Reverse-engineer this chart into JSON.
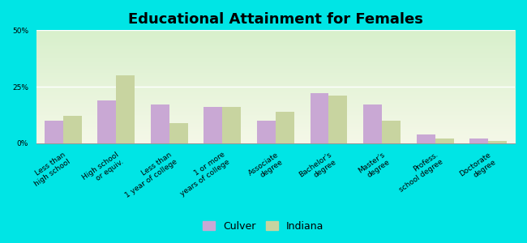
{
  "title": "Educational Attainment for Females",
  "categories": [
    "Less than\nhigh school",
    "High school\nor equiv.",
    "Less than\n1 year of college",
    "1 or more\nyears of college",
    "Associate\ndegree",
    "Bachelor's\ndegree",
    "Master's\ndegree",
    "Profess.\nschool degree",
    "Doctorate\ndegree"
  ],
  "culver_values": [
    10,
    19,
    17,
    16,
    10,
    22,
    17,
    4,
    2
  ],
  "indiana_values": [
    12,
    30,
    9,
    16,
    14,
    21,
    10,
    2,
    1
  ],
  "culver_color": "#c9a8d4",
  "indiana_color": "#c8d4a0",
  "background_color": "#00e5e5",
  "ylim": [
    0,
    50
  ],
  "yticks": [
    0,
    25,
    50
  ],
  "ytick_labels": [
    "0%",
    "25%",
    "50%"
  ],
  "bar_width": 0.35,
  "legend_labels": [
    "Culver",
    "Indiana"
  ],
  "title_fontsize": 13,
  "tick_fontsize": 6.5
}
